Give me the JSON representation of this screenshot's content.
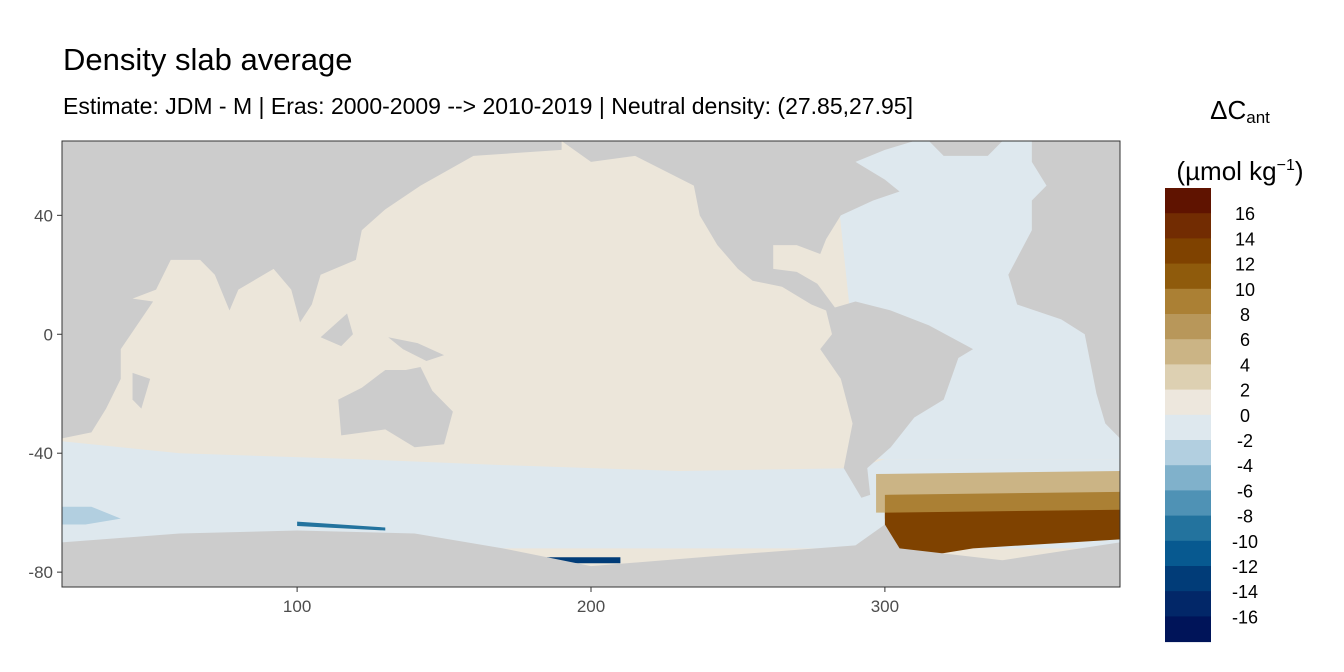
{
  "title": "Density slab average",
  "subtitle": "Estimate: JDM - M | Eras: 2000-2009 --> 2010-2019 | Neutral density: (27.85,27.95]",
  "legend": {
    "symbol": "ΔC",
    "sub": "ant",
    "unit_pre": "(µmol kg",
    "unit_sup": "−1",
    "unit_post": ")",
    "labels": [
      "16",
      "14",
      "12",
      "10",
      "8",
      "6",
      "4",
      "2",
      "0",
      "-2",
      "-4",
      "-6",
      "-8",
      "-10",
      "-12",
      "-14",
      "-16"
    ],
    "colors": [
      "#5f1300",
      "#722c02",
      "#7f4200",
      "#8f5b0c",
      "#ab8034",
      "#b8975a",
      "#cbb485",
      "#ddd0b2",
      "#ede7dd",
      "#dee8ee",
      "#b2cfe0",
      "#80b1cb",
      "#4f92b5",
      "#23739e",
      "#075990",
      "#013c78",
      "#022768",
      "#001459"
    ]
  },
  "chart_data": {
    "type": "heatmap-map",
    "xlim": [
      20,
      380
    ],
    "ylim": [
      -85,
      65
    ],
    "xticks": [
      100,
      200,
      300
    ],
    "yticks": [
      40,
      0,
      -40,
      -80
    ],
    "land_color": "#cccccc",
    "ocean_color": "#ece6da",
    "regions": [
      {
        "name": "atlantic-negative",
        "color": "#dee8ee",
        "pts": [
          [
            282,
            65
          ],
          [
            380,
            65
          ],
          [
            380,
            -42
          ],
          [
            296,
            -42
          ],
          [
            290,
            -10
          ]
        ]
      },
      {
        "name": "southern-negative",
        "color": "#dee8ee",
        "pts": [
          [
            20,
            -36
          ],
          [
            60,
            -40
          ],
          [
            120,
            -42
          ],
          [
            170,
            -44
          ],
          [
            230,
            -46
          ],
          [
            290,
            -45
          ],
          [
            300,
            -42
          ],
          [
            380,
            -42
          ],
          [
            380,
            -72
          ],
          [
            20,
            -72
          ]
        ]
      },
      {
        "name": "southern-negative-2",
        "color": "#b2cfe0",
        "pts": [
          [
            20,
            -58
          ],
          [
            30,
            -58
          ],
          [
            40,
            -62
          ],
          [
            28,
            -64
          ],
          [
            20,
            -64
          ]
        ]
      },
      {
        "name": "south-atlantic-positive",
        "color": "#cbb485",
        "pts": [
          [
            297,
            -47
          ],
          [
            380,
            -46
          ],
          [
            380,
            -60
          ],
          [
            297,
            -60
          ]
        ]
      },
      {
        "name": "south-atlantic-positive-2",
        "color": "#ab8034",
        "pts": [
          [
            300,
            -54
          ],
          [
            380,
            -53
          ],
          [
            380,
            -62
          ],
          [
            300,
            -62
          ]
        ]
      },
      {
        "name": "weddell-positive",
        "color": "#7f4200",
        "pts": [
          [
            300,
            -60
          ],
          [
            380,
            -59
          ],
          [
            380,
            -69
          ],
          [
            330,
            -72
          ],
          [
            305,
            -76
          ],
          [
            300,
            -72
          ]
        ]
      },
      {
        "name": "ross-negative",
        "color": "#013c78",
        "pts": [
          [
            185,
            -75
          ],
          [
            210,
            -75
          ],
          [
            210,
            -77
          ],
          [
            185,
            -77
          ]
        ]
      },
      {
        "name": "coastal-negative",
        "color": "#23739e",
        "pts": [
          [
            100,
            -63
          ],
          [
            130,
            -65
          ],
          [
            130,
            -66
          ],
          [
            100,
            -64.5
          ]
        ]
      }
    ],
    "land": [
      [
        [
          20,
          65
        ],
        [
          190,
          65
        ],
        [
          190,
          62
        ],
        [
          160,
          60
        ],
        [
          142,
          50
        ],
        [
          130,
          42
        ],
        [
          122,
          35
        ],
        [
          120,
          25
        ],
        [
          108,
          20
        ],
        [
          105,
          10
        ],
        [
          101,
          4
        ],
        [
          98,
          15
        ],
        [
          92,
          22
        ],
        [
          80,
          15
        ],
        [
          77,
          8
        ],
        [
          72,
          20
        ],
        [
          67,
          25
        ],
        [
          57,
          25
        ],
        [
          52,
          15
        ],
        [
          44,
          12
        ],
        [
          51,
          11
        ],
        [
          40,
          -5
        ],
        [
          40,
          -15
        ],
        [
          35,
          -25
        ],
        [
          30,
          -33
        ],
        [
          20,
          -35
        ]
      ],
      [
        [
          44,
          -13
        ],
        [
          50,
          -15
        ],
        [
          47,
          -25
        ],
        [
          44,
          -22
        ]
      ],
      [
        [
          114,
          -22
        ],
        [
          122,
          -18
        ],
        [
          130,
          -12
        ],
        [
          137,
          -12
        ],
        [
          142,
          -11
        ],
        [
          146,
          -19
        ],
        [
          153,
          -26
        ],
        [
          150,
          -37
        ],
        [
          140,
          -38
        ],
        [
          130,
          -32
        ],
        [
          115,
          -34
        ]
      ],
      [
        [
          131,
          -1
        ],
        [
          141,
          -3
        ],
        [
          150,
          -7
        ],
        [
          144,
          -9
        ],
        [
          136,
          -5
        ]
      ],
      [
        [
          108,
          -1
        ],
        [
          117,
          7
        ],
        [
          119,
          0
        ],
        [
          115,
          -4
        ]
      ],
      [
        [
          20,
          -70
        ],
        [
          60,
          -67
        ],
        [
          100,
          -66
        ],
        [
          140,
          -67
        ],
        [
          170,
          -72
        ],
        [
          200,
          -78
        ],
        [
          250,
          -74
        ],
        [
          290,
          -71
        ],
        [
          300,
          -64
        ],
        [
          305,
          -72
        ],
        [
          340,
          -76
        ],
        [
          380,
          -70
        ],
        [
          380,
          -85
        ],
        [
          20,
          -85
        ]
      ],
      [
        [
          190,
          65
        ],
        [
          200,
          58
        ],
        [
          215,
          60
        ],
        [
          235,
          50
        ],
        [
          237,
          40
        ],
        [
          243,
          30
        ],
        [
          250,
          22
        ],
        [
          255,
          18
        ],
        [
          265,
          16
        ],
        [
          275,
          10
        ],
        [
          280,
          8
        ],
        [
          282,
          0
        ],
        [
          278,
          -5
        ],
        [
          285,
          -15
        ],
        [
          289,
          -30
        ],
        [
          286,
          -45
        ],
        [
          292,
          -55
        ],
        [
          295,
          -54
        ],
        [
          294,
          -45
        ],
        [
          302,
          -38
        ],
        [
          310,
          -28
        ],
        [
          320,
          -22
        ],
        [
          325,
          -8
        ],
        [
          330,
          -5
        ],
        [
          315,
          3
        ],
        [
          302,
          8
        ],
        [
          290,
          11
        ],
        [
          283,
          9
        ],
        [
          277,
          17
        ],
        [
          270,
          21
        ],
        [
          262,
          22
        ],
        [
          262,
          30
        ],
        [
          270,
          30
        ],
        [
          278,
          27
        ],
        [
          280,
          32
        ],
        [
          285,
          40
        ],
        [
          296,
          45
        ],
        [
          305,
          48
        ],
        [
          300,
          52
        ],
        [
          290,
          58
        ],
        [
          300,
          62
        ],
        [
          310,
          65
        ]
      ],
      [
        [
          315,
          65
        ],
        [
          340,
          65
        ],
        [
          335,
          60
        ],
        [
          320,
          60
        ]
      ],
      [
        [
          350,
          65
        ],
        [
          380,
          65
        ],
        [
          380,
          -35
        ],
        [
          375,
          -30
        ],
        [
          372,
          -20
        ],
        [
          370,
          -10
        ],
        [
          368,
          0
        ],
        [
          360,
          5
        ],
        [
          345,
          10
        ],
        [
          342,
          20
        ],
        [
          350,
          35
        ],
        [
          350,
          45
        ],
        [
          355,
          50
        ],
        [
          350,
          58
        ]
      ]
    ]
  }
}
